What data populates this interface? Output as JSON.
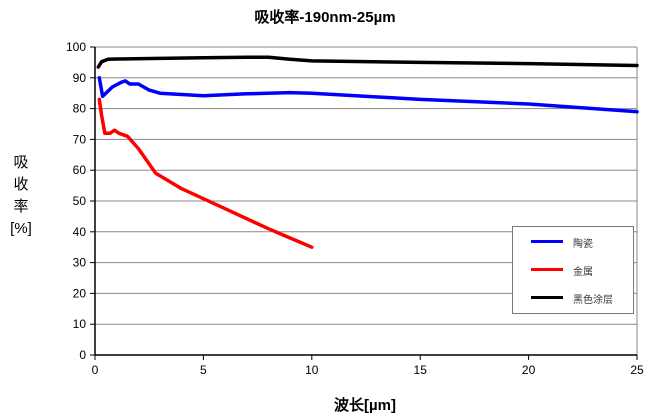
{
  "chart_data": {
    "type": "line",
    "title": "吸收率-190nm-25µm",
    "xlabel": "波长[µm]",
    "ylabel": [
      "吸",
      "收",
      "率",
      "[%]"
    ],
    "xlim": [
      0,
      25
    ],
    "ylim": [
      0,
      100
    ],
    "xticks": [
      0,
      5,
      10,
      15,
      20,
      25
    ],
    "yticks": [
      0,
      10,
      20,
      30,
      40,
      50,
      60,
      70,
      80,
      90,
      100
    ],
    "grid": "horizontal",
    "legend_position": "bottom-right",
    "series": [
      {
        "name": "陶瓷",
        "color": "#0000ff",
        "x": [
          0.2,
          0.35,
          0.8,
          1.2,
          1.4,
          1.6,
          2.0,
          2.5,
          3.0,
          5.0,
          7.0,
          9.0,
          10.0,
          15.0,
          20.0,
          25.0
        ],
        "y": [
          90,
          84,
          87,
          88.5,
          89,
          88,
          88,
          86,
          85,
          84.2,
          84.8,
          85.2,
          85,
          83,
          81.5,
          79
        ]
      },
      {
        "name": "金属",
        "color": "#ff0000",
        "x": [
          0.2,
          0.3,
          0.45,
          0.7,
          0.9,
          1.1,
          1.5,
          2.0,
          2.8,
          4.0,
          6.0,
          8.0,
          9.0,
          10.0
        ],
        "y": [
          83,
          78,
          72,
          72,
          73,
          72,
          71,
          67,
          59,
          54,
          47.5,
          41,
          38,
          35
        ]
      },
      {
        "name": "黑色涂层",
        "color": "#000000",
        "x": [
          0.15,
          0.3,
          0.6,
          1.0,
          3.0,
          5.0,
          7.0,
          8.0,
          9.0,
          10.0,
          15.0,
          20.0,
          25.0
        ],
        "y": [
          93.5,
          95.2,
          96,
          96.1,
          96.3,
          96.5,
          96.7,
          96.7,
          96,
          95.5,
          95,
          94.6,
          94
        ]
      }
    ]
  }
}
